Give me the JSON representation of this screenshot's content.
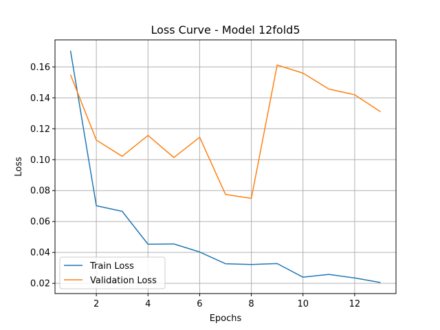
{
  "chart_data": {
    "type": "line",
    "title": "Loss Curve - Model 12fold5",
    "xlabel": "Epochs",
    "ylabel": "Loss",
    "x": [
      1,
      2,
      3,
      4,
      5,
      6,
      7,
      8,
      9,
      10,
      11,
      12,
      13
    ],
    "xlim": [
      0.4,
      13.6
    ],
    "ylim": [
      0.0134,
      0.1775
    ],
    "xticks": [
      2,
      4,
      6,
      8,
      10,
      12
    ],
    "xtick_labels": [
      "2",
      "4",
      "6",
      "8",
      "10",
      "12"
    ],
    "yticks": [
      0.02,
      0.04,
      0.06,
      0.08,
      0.1,
      0.12,
      0.14,
      0.16
    ],
    "ytick_labels": [
      "0.02",
      "0.04",
      "0.06",
      "0.08",
      "0.10",
      "0.12",
      "0.14",
      "0.16"
    ],
    "grid": true,
    "legend_position": "lower-left",
    "series": [
      {
        "name": "Train Loss",
        "color": "#1f77b4",
        "values": [
          0.1705,
          0.0702,
          0.0666,
          0.0453,
          0.0455,
          0.0403,
          0.0327,
          0.0322,
          0.0328,
          0.024,
          0.0258,
          0.0235,
          0.0205
        ]
      },
      {
        "name": "Validation Loss",
        "color": "#ff7f0e",
        "values": [
          0.155,
          0.1127,
          0.1022,
          0.1157,
          0.1014,
          0.1145,
          0.0775,
          0.075,
          0.1612,
          0.156,
          0.1457,
          0.142,
          0.131
        ]
      }
    ]
  }
}
